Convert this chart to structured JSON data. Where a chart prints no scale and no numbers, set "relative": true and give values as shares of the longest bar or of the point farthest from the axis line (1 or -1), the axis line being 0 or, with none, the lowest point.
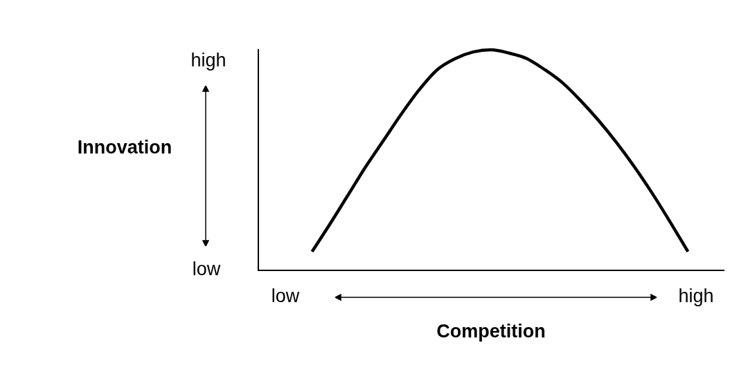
{
  "chart_data": {
    "type": "line",
    "relative": true,
    "xlabel": "Competition",
    "ylabel": "Innovation",
    "marker": "none",
    "line_style": "solid",
    "grid": false,
    "legend": false,
    "tick_labels": false,
    "annotations": [
      "high",
      "low",
      "low",
      "high"
    ],
    "categories": [
      null,
      null,
      null,
      null,
      null,
      null,
      null,
      null,
      null,
      null,
      null,
      null,
      null,
      null,
      null,
      null,
      null,
      null,
      null,
      null,
      null,
      null,
      null,
      null,
      null,
      null,
      null
    ],
    "series": [
      {
        "color": "#000000",
        "values": [
          null,
          null,
          null,
          0.085,
          0.21,
          0.34,
          0.47,
          0.59,
          0.71,
          0.82,
          0.91,
          0.96,
          0.99,
          1,
          0.985,
          0.96,
          0.91,
          0.85,
          0.77,
          0.68,
          0.58,
          0.47,
          0.35,
          0.22,
          0.085,
          null,
          null
        ]
      }
    ]
  }
}
